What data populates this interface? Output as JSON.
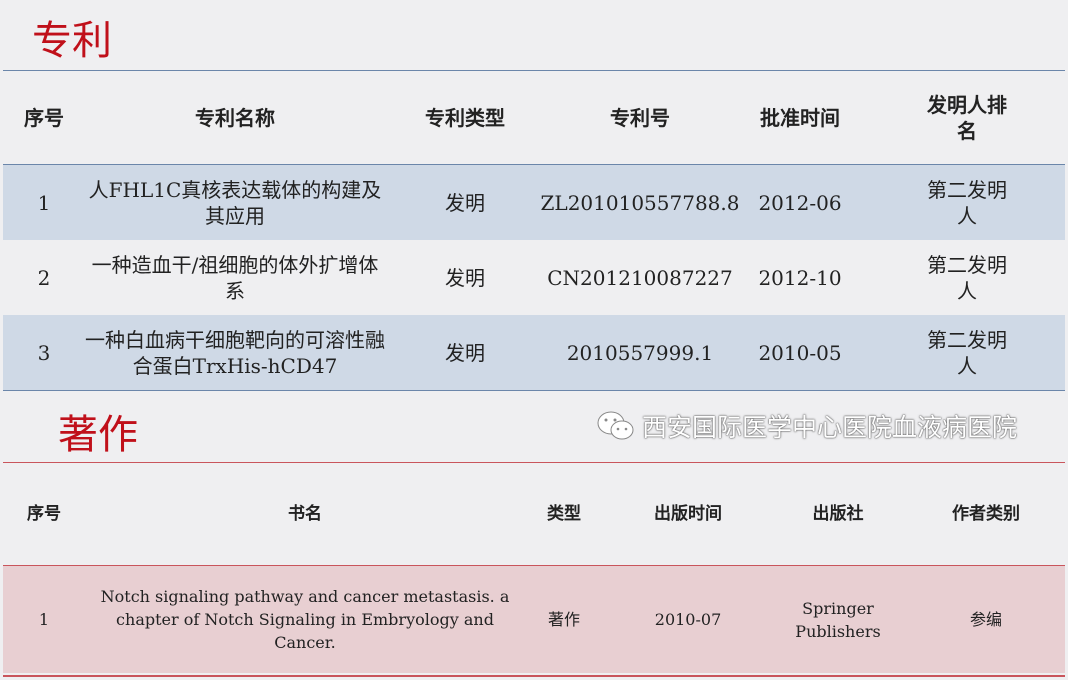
{
  "patents": {
    "title": "专利",
    "headers": [
      "序号",
      "专利名称",
      "专利类型",
      "专利号",
      "批准时间",
      "发明人排名"
    ],
    "rows": [
      [
        "1",
        "人FHL1C真核表达载体的构建及其应用",
        "发明",
        "ZL201010557788.8",
        "2012-06",
        "第二发明人"
      ],
      [
        "2",
        "一种造血干/祖细胞的体外扩增体系",
        "发明",
        "CN201210087227",
        "2012-10",
        "第二发明人"
      ],
      [
        "3",
        "一种白血病干细胞靶向的可溶性融合蛋白TrxHis-hCD47",
        "发明",
        "2010557999.1",
        "2010-05",
        "第二发明人"
      ]
    ]
  },
  "books": {
    "title": "著作",
    "headers": [
      "序号",
      "书名",
      "类型",
      "出版时间",
      "出版社",
      "作者类别"
    ],
    "rows": [
      [
        "1",
        "Notch signaling pathway and cancer metastasis. a chapter of Notch Signaling in Embryology and Cancer.",
        "著作",
        "2010-07",
        "Springer Publishers",
        "参编"
      ]
    ]
  },
  "watermark": {
    "icon": "wechat-icon",
    "text": "西安国际医学中心医院血液病医院"
  },
  "colors": {
    "title": "#c0101a",
    "patent_band": "#cfd9e6",
    "book_band": "#e8cfd2",
    "background": "#efeff1"
  }
}
